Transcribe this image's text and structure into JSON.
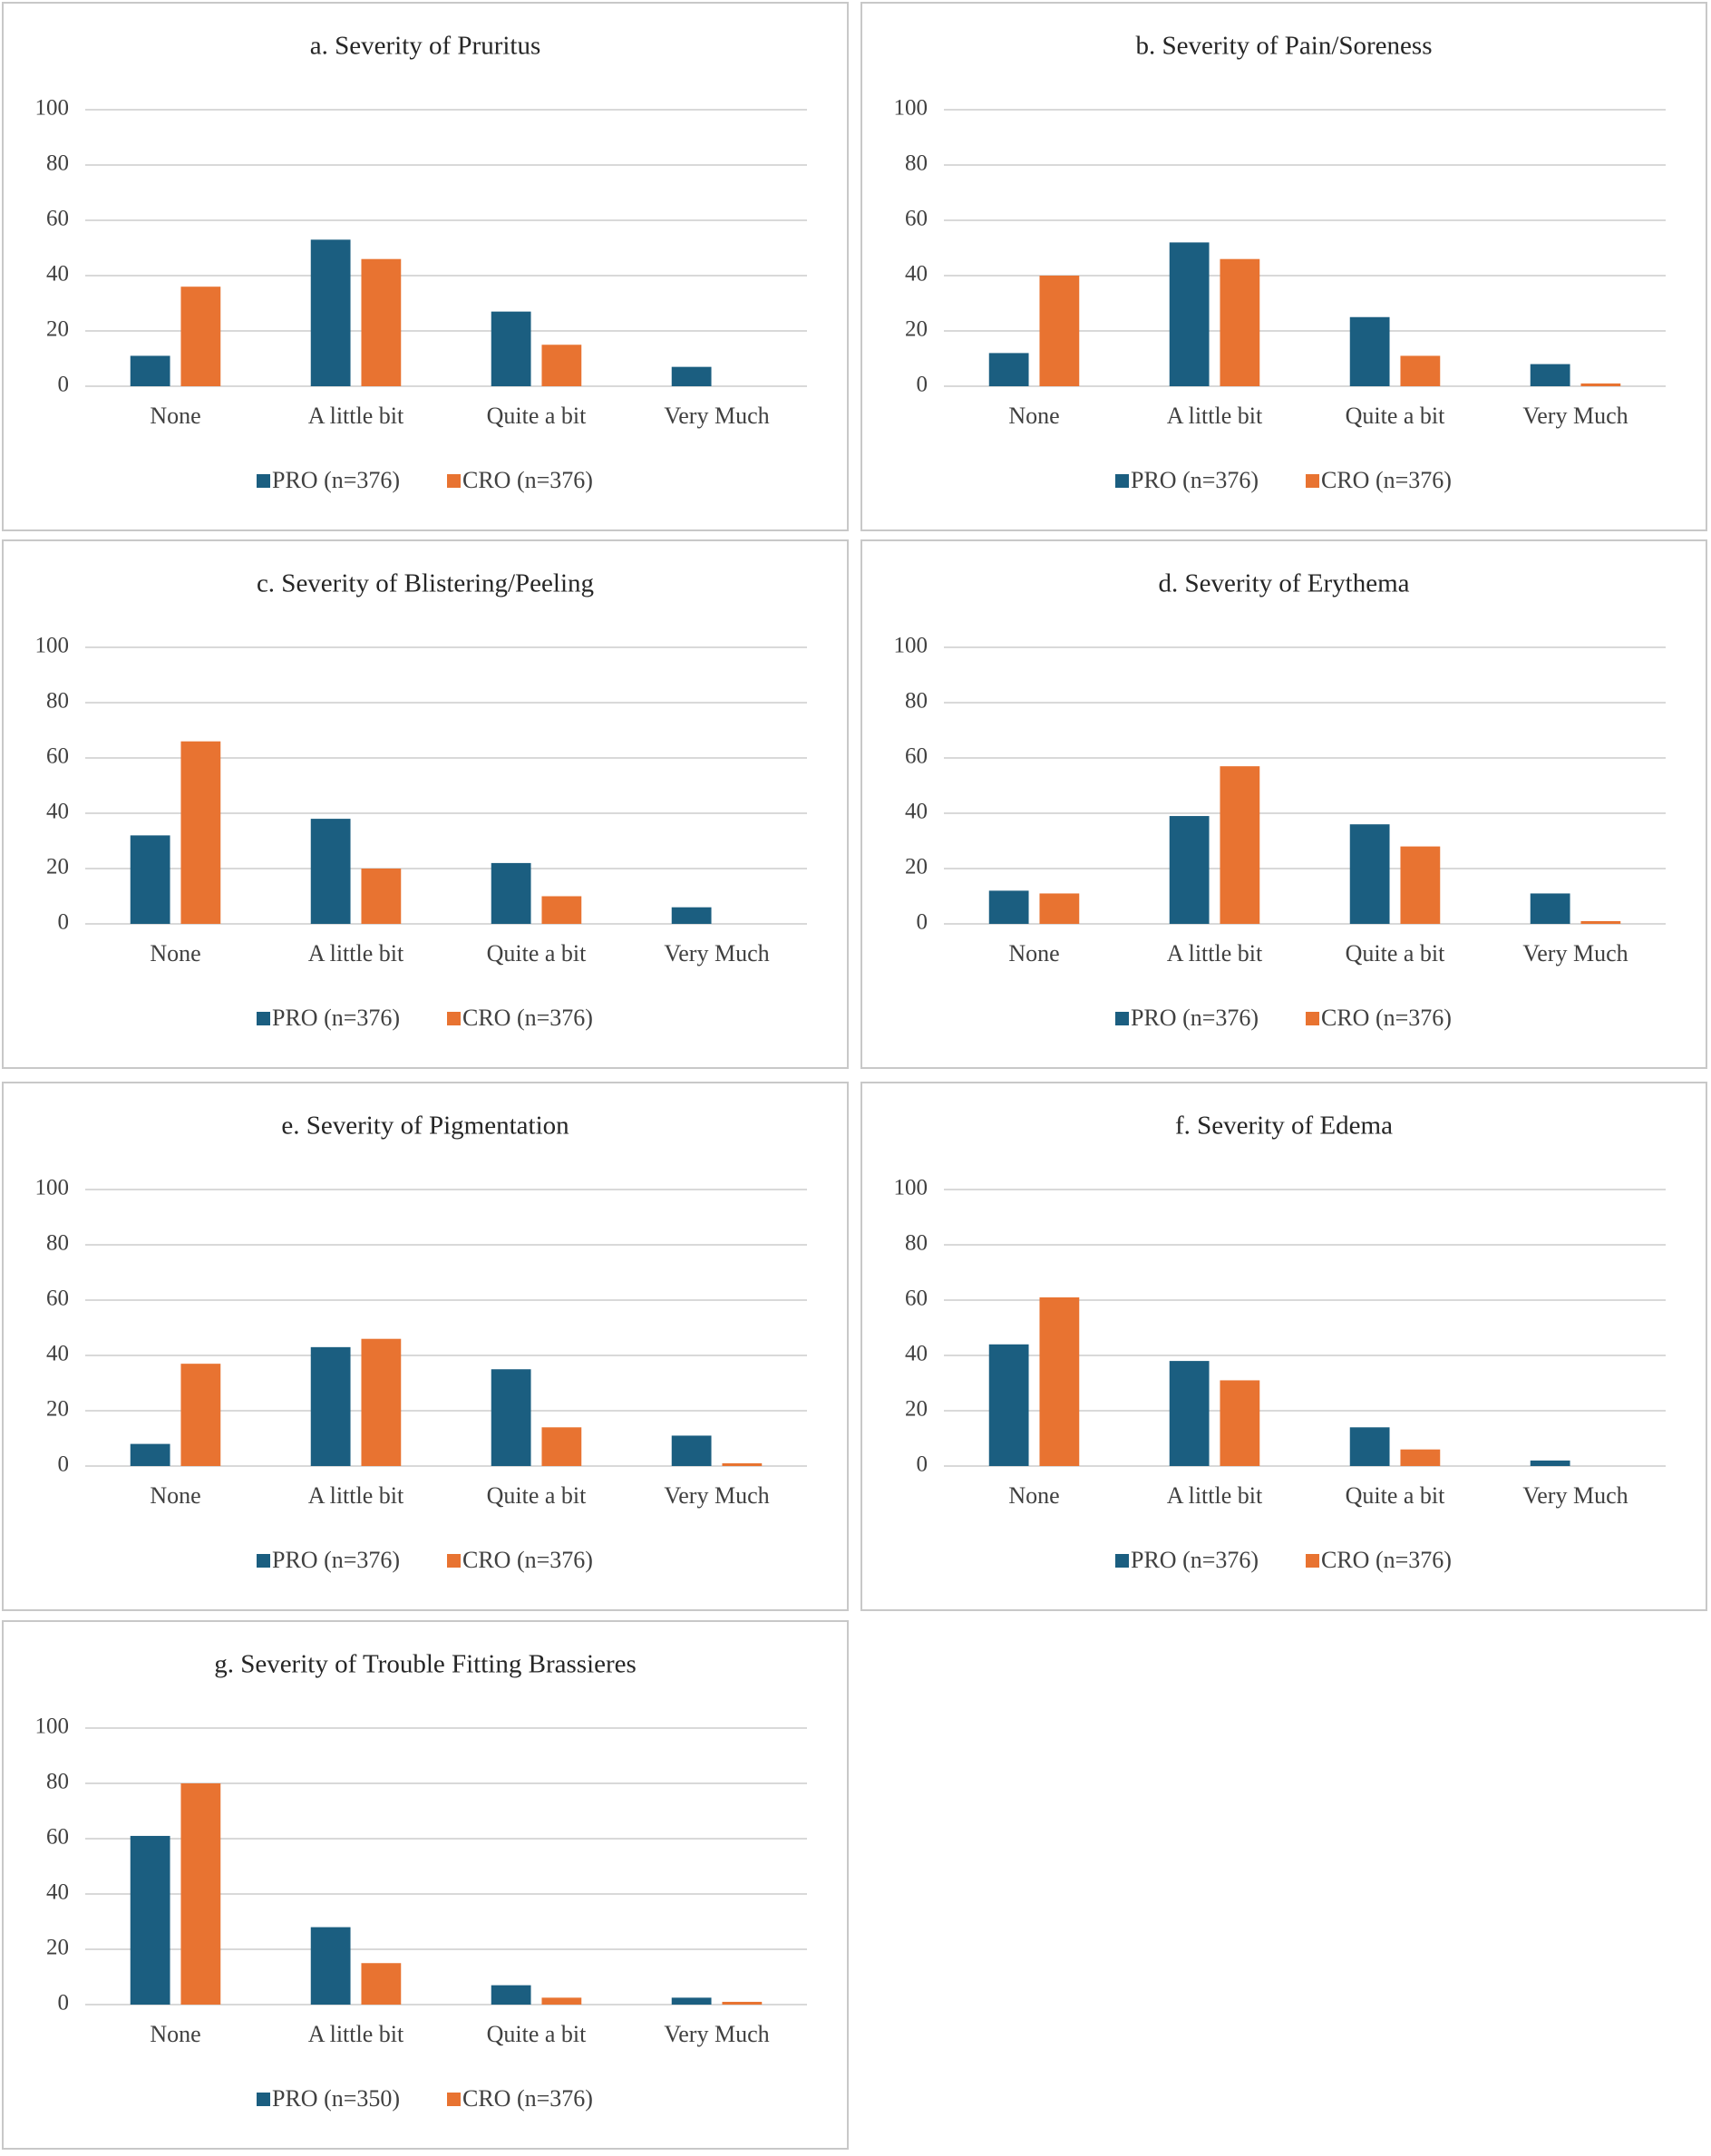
{
  "chart_data": [
    {
      "type": "bar",
      "title": "a. Severity of Pruritus",
      "categories": [
        "None",
        "A little bit",
        "Quite a bit",
        "Very Much"
      ],
      "series": [
        {
          "name": "PRO (n=376)",
          "color": "#1b5e80",
          "values": [
            11,
            53,
            27,
            7
          ]
        },
        {
          "name": "CRO (n=376)",
          "color": "#e87331",
          "values": [
            36,
            46,
            15,
            0
          ]
        }
      ],
      "ylim": [
        0,
        100
      ],
      "yticks": [
        0,
        20,
        40,
        60,
        80,
        100
      ],
      "grid": true,
      "legend": "bottom"
    },
    {
      "type": "bar",
      "title": "b. Severity of Pain/Soreness",
      "categories": [
        "None",
        "A little bit",
        "Quite a bit",
        "Very Much"
      ],
      "series": [
        {
          "name": "PRO (n=376)",
          "color": "#1b5e80",
          "values": [
            12,
            52,
            25,
            8
          ]
        },
        {
          "name": "CRO (n=376)",
          "color": "#e87331",
          "values": [
            40,
            46,
            11,
            1
          ]
        }
      ],
      "ylim": [
        0,
        100
      ],
      "yticks": [
        0,
        20,
        40,
        60,
        80,
        100
      ],
      "grid": true,
      "legend": "bottom"
    },
    {
      "type": "bar",
      "title": "c. Severity of Blistering/Peeling",
      "categories": [
        "None",
        "A little bit",
        "Quite a bit",
        "Very Much"
      ],
      "series": [
        {
          "name": "PRO (n=376)",
          "color": "#1b5e80",
          "values": [
            32,
            38,
            22,
            6
          ]
        },
        {
          "name": "CRO (n=376)",
          "color": "#e87331",
          "values": [
            66,
            20,
            10,
            0
          ]
        }
      ],
      "ylim": [
        0,
        100
      ],
      "yticks": [
        0,
        20,
        40,
        60,
        80,
        100
      ],
      "grid": true,
      "legend": "bottom"
    },
    {
      "type": "bar",
      "title": "d. Severity of Erythema",
      "categories": [
        "None",
        "A little bit",
        "Quite a bit",
        "Very Much"
      ],
      "series": [
        {
          "name": "PRO (n=376)",
          "color": "#1b5e80",
          "values": [
            12,
            39,
            36,
            11
          ]
        },
        {
          "name": "CRO (n=376)",
          "color": "#e87331",
          "values": [
            11,
            57,
            28,
            1
          ]
        }
      ],
      "ylim": [
        0,
        100
      ],
      "yticks": [
        0,
        20,
        40,
        60,
        80,
        100
      ],
      "grid": true,
      "legend": "bottom"
    },
    {
      "type": "bar",
      "title": "e. Severity of Pigmentation",
      "categories": [
        "None",
        "A little bit",
        "Quite a bit",
        "Very Much"
      ],
      "series": [
        {
          "name": "PRO (n=376)",
          "color": "#1b5e80",
          "values": [
            8,
            43,
            35,
            11
          ]
        },
        {
          "name": "CRO (n=376)",
          "color": "#e87331",
          "values": [
            37,
            46,
            14,
            1
          ]
        }
      ],
      "ylim": [
        0,
        100
      ],
      "yticks": [
        0,
        20,
        40,
        60,
        80,
        100
      ],
      "grid": true,
      "legend": "bottom"
    },
    {
      "type": "bar",
      "title": "f. Severity of Edema",
      "categories": [
        "None",
        "A little bit",
        "Quite a bit",
        "Very Much"
      ],
      "series": [
        {
          "name": "PRO (n=376)",
          "color": "#1b5e80",
          "values": [
            44,
            38,
            14,
            2
          ]
        },
        {
          "name": "CRO (n=376)",
          "color": "#e87331",
          "values": [
            61,
            31,
            6,
            0
          ]
        }
      ],
      "ylim": [
        0,
        100
      ],
      "yticks": [
        0,
        20,
        40,
        60,
        80,
        100
      ],
      "grid": true,
      "legend": "bottom"
    },
    {
      "type": "bar",
      "title": "g. Severity of Trouble Fitting Brassieres",
      "categories": [
        "None",
        "A little bit",
        "Quite a bit",
        "Very Much"
      ],
      "series": [
        {
          "name": "PRO (n=350)",
          "color": "#1b5e80",
          "values": [
            61,
            28,
            7,
            2.5
          ]
        },
        {
          "name": "CRO (n=376)",
          "color": "#e87331",
          "values": [
            80,
            15,
            2.5,
            1
          ]
        }
      ],
      "ylim": [
        0,
        100
      ],
      "yticks": [
        0,
        20,
        40,
        60,
        80,
        100
      ],
      "grid": true,
      "legend": "bottom"
    }
  ]
}
